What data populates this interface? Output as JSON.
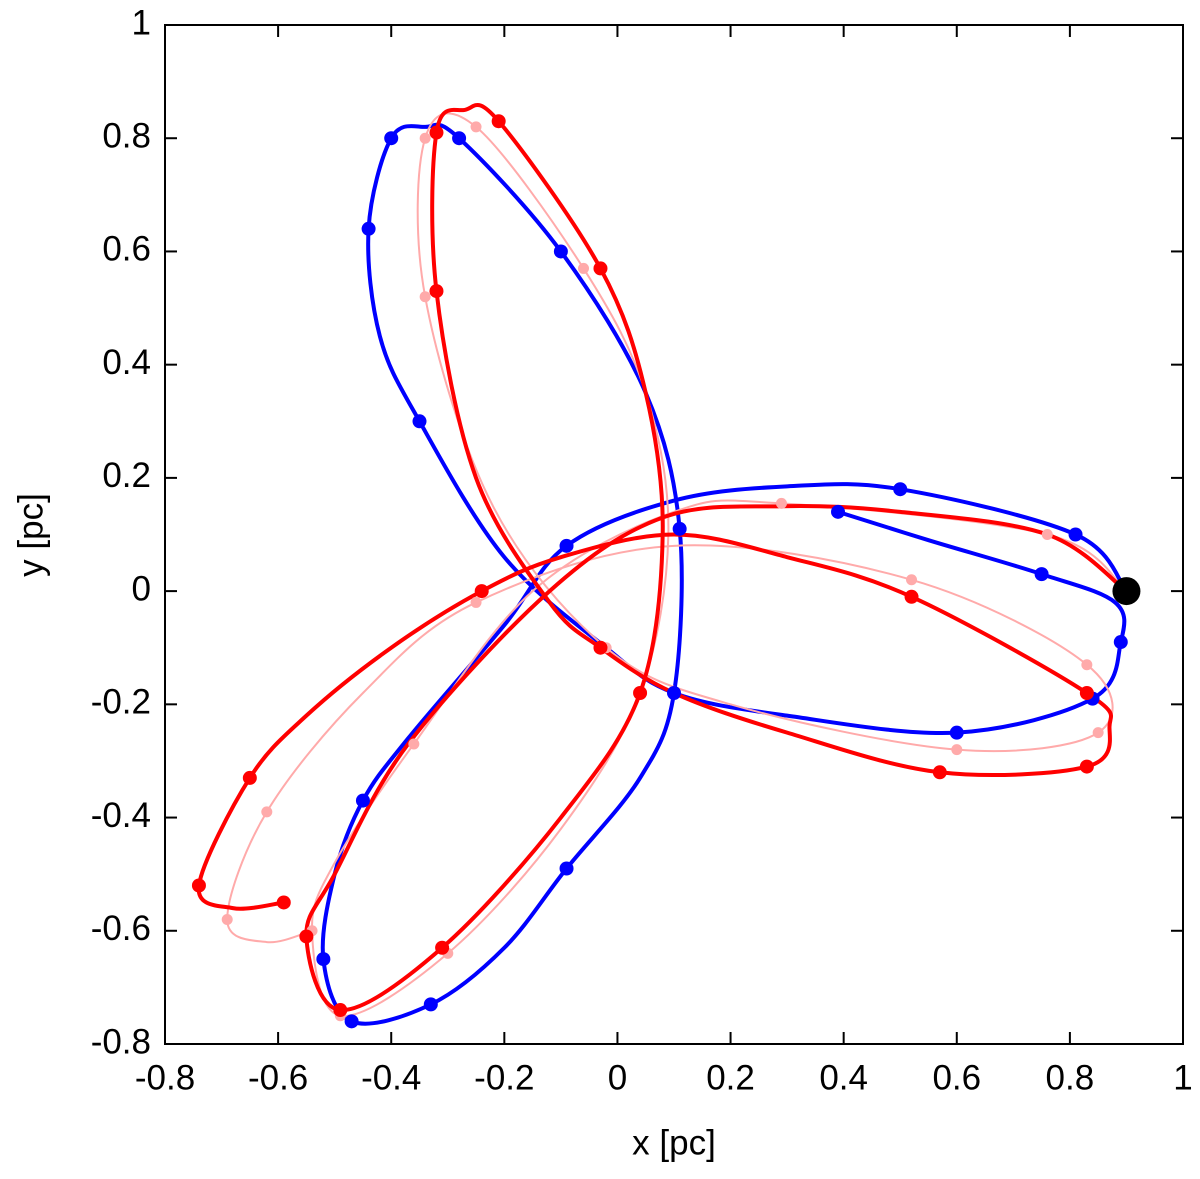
{
  "chart_data": {
    "type": "line",
    "xlabel": "x [pc]",
    "ylabel": "y [pc]",
    "xlim": [
      -0.8,
      1
    ],
    "ylim": [
      -0.8,
      1
    ],
    "xticks": [
      -0.8,
      -0.6,
      -0.4,
      -0.2,
      0,
      0.2,
      0.4,
      0.6,
      0.8,
      1
    ],
    "yticks": [
      -0.8,
      -0.6,
      -0.4,
      -0.2,
      0,
      0.2,
      0.4,
      0.6,
      0.8,
      1
    ],
    "series": [
      {
        "color": "#0000ff",
        "line_width": 4,
        "x": [
          0.9,
          0.81,
          0.5,
          0.3,
          0.1,
          -0.09,
          -0.2,
          -0.37,
          -0.45,
          -0.5,
          -0.52,
          -0.47,
          -0.33,
          -0.2,
          -0.09,
          0.04,
          0.1,
          0.11,
          0.05,
          -0.1,
          -0.28,
          -0.34,
          -0.4,
          -0.44,
          -0.42,
          -0.35,
          -0.2,
          -0.02,
          0.1,
          0.3,
          0.6,
          0.84,
          0.89,
          0.88,
          0.75,
          0.55,
          0.39
        ],
        "y": [
          0,
          0.1,
          0.18,
          0.185,
          0.16,
          0.08,
          -0.06,
          -0.26,
          -0.37,
          -0.5,
          -0.65,
          -0.76,
          -0.73,
          -0.63,
          -0.49,
          -0.33,
          -0.18,
          0.11,
          0.35,
          0.6,
          0.8,
          0.82,
          0.8,
          0.64,
          0.45,
          0.3,
          0.06,
          -0.1,
          -0.18,
          -0.22,
          -0.25,
          -0.19,
          -0.09,
          -0.02,
          0.03,
          0.09,
          0.14
        ],
        "marker_x": [
          0.89,
          0.84,
          0.6,
          0.1,
          -0.35,
          -0.44,
          -0.4,
          -0.28,
          -0.1,
          0.11,
          -0.09,
          -0.33,
          -0.47,
          -0.52,
          -0.45,
          -0.09,
          0.5,
          0.81,
          0.75,
          0.39
        ],
        "marker_y": [
          -0.09,
          -0.19,
          -0.25,
          -0.18,
          0.3,
          0.64,
          0.8,
          0.8,
          0.6,
          0.11,
          -0.49,
          -0.73,
          -0.76,
          -0.65,
          -0.37,
          0.08,
          0.18,
          0.1,
          0.03,
          0.14
        ],
        "marker_radius": 7
      },
      {
        "color": "#ffaaaa",
        "line_width": 2,
        "x": [
          0.9,
          0.76,
          0.29,
          0.1,
          -0.15,
          -0.36,
          -0.5,
          -0.54,
          -0.49,
          -0.3,
          -0.1,
          0.04,
          0.09,
          0.05,
          -0.06,
          -0.25,
          -0.34,
          -0.34,
          -0.22,
          -0.02,
          0.2,
          0.6,
          0.85,
          0.83,
          0.52,
          0.1,
          -0.25,
          -0.45,
          -0.62,
          -0.69,
          -0.62,
          -0.54
        ],
        "y": [
          0,
          0.1,
          0.155,
          0.14,
          0.0,
          -0.27,
          -0.48,
          -0.6,
          -0.75,
          -0.64,
          -0.42,
          -0.18,
          0.1,
          0.35,
          0.57,
          0.82,
          0.8,
          0.52,
          0.15,
          -0.1,
          -0.2,
          -0.28,
          -0.25,
          -0.13,
          0.02,
          0.08,
          -0.02,
          -0.18,
          -0.39,
          -0.58,
          -0.62,
          -0.6
        ],
        "marker_x": [
          0.76,
          0.29,
          0.83,
          0.85,
          0.6,
          0.52,
          -0.25,
          -0.36,
          -0.62,
          -0.69,
          -0.54,
          -0.49,
          -0.3,
          0.04,
          -0.02,
          -0.34,
          -0.34,
          -0.25,
          -0.06
        ],
        "marker_y": [
          0.1,
          0.155,
          -0.13,
          -0.25,
          -0.28,
          0.02,
          -0.02,
          -0.27,
          -0.39,
          -0.58,
          -0.6,
          -0.75,
          -0.64,
          -0.18,
          -0.1,
          0.52,
          0.8,
          0.82,
          0.57
        ],
        "marker_radius": 5.5
      },
      {
        "color": "#ff0000",
        "line_width": 4,
        "x": [
          0.9,
          0.76,
          0.5,
          0.29,
          0.08,
          -0.12,
          -0.37,
          -0.5,
          -0.55,
          -0.49,
          -0.31,
          -0.1,
          0.04,
          0.08,
          0.05,
          -0.03,
          -0.21,
          -0.27,
          -0.32,
          -0.32,
          -0.25,
          -0.12,
          -0.03,
          0.1,
          0.3,
          0.57,
          0.83,
          0.87,
          0.83,
          0.52,
          0.3,
          0.1,
          -0.1,
          -0.24,
          -0.4,
          -0.55,
          -0.65,
          -0.74,
          -0.68,
          -0.59
        ],
        "y": [
          0,
          0.1,
          0.14,
          0.15,
          0.13,
          0.0,
          -0.27,
          -0.5,
          -0.61,
          -0.74,
          -0.63,
          -0.4,
          -0.18,
          0.1,
          0.35,
          0.57,
          0.83,
          0.85,
          0.81,
          0.53,
          0.2,
          -0.02,
          -0.1,
          -0.18,
          -0.25,
          -0.32,
          -0.31,
          -0.24,
          -0.18,
          -0.01,
          0.06,
          0.1,
          0.06,
          0,
          -0.1,
          -0.22,
          -0.33,
          -0.52,
          -0.56,
          -0.55
        ],
        "marker_x": [
          -0.32,
          -0.32,
          -0.21,
          -0.03,
          -0.03,
          0.04,
          -0.24,
          0.52,
          0.83,
          0.57,
          0.83,
          -0.65,
          -0.74,
          -0.59,
          -0.55,
          -0.49,
          -0.31
        ],
        "marker_y": [
          0.53,
          0.81,
          0.83,
          0.57,
          -0.1,
          -0.18,
          0,
          -0.01,
          -0.18,
          -0.32,
          -0.31,
          -0.33,
          -0.52,
          -0.55,
          -0.61,
          -0.74,
          -0.63
        ],
        "marker_radius": 7
      }
    ],
    "point": {
      "x": 0.9,
      "y": 0,
      "color": "#000000",
      "radius": 14
    }
  }
}
